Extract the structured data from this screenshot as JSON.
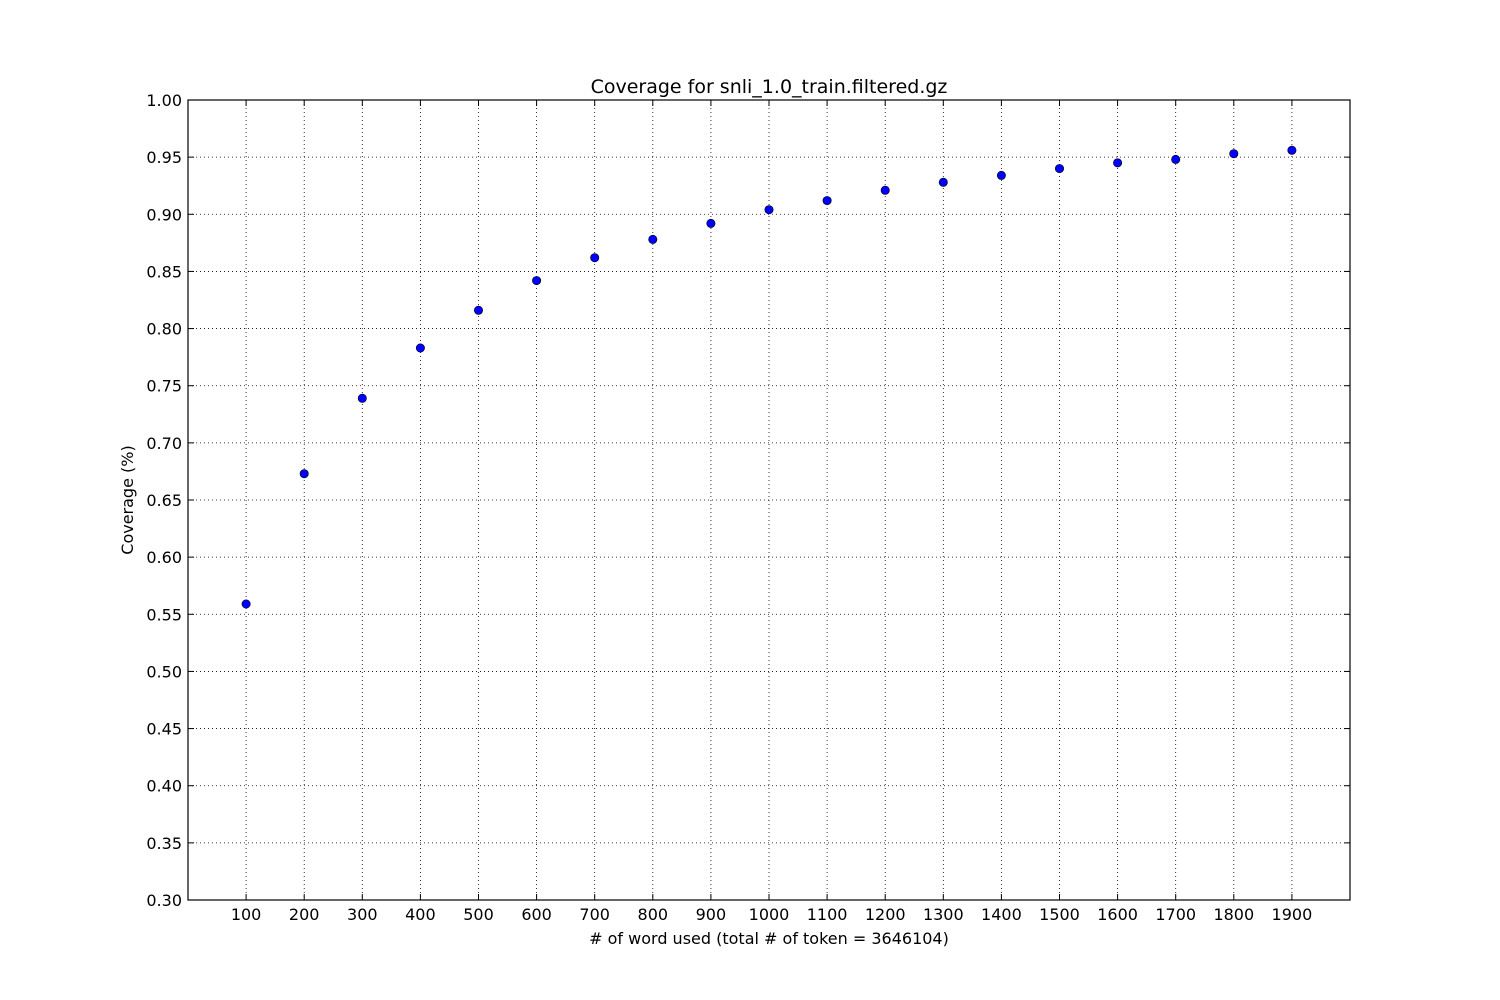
{
  "chart_data": {
    "type": "scatter",
    "title": "Coverage for snli_1.0_train.filtered.gz",
    "xlabel": "# of word used (total # of token = 3646104)",
    "ylabel": "Coverage (%)",
    "xlim": [
      0,
      2000
    ],
    "ylim": [
      0.3,
      1.0
    ],
    "x_ticks": [
      100,
      200,
      300,
      400,
      500,
      600,
      700,
      800,
      900,
      1000,
      1100,
      1200,
      1300,
      1400,
      1500,
      1600,
      1700,
      1800,
      1900
    ],
    "y_ticks": [
      0.3,
      0.35,
      0.4,
      0.45,
      0.5,
      0.55,
      0.6,
      0.65,
      0.7,
      0.75,
      0.8,
      0.85,
      0.9,
      0.95,
      1.0
    ],
    "y_tick_labels": [
      "0.30",
      "0.35",
      "0.40",
      "0.45",
      "0.50",
      "0.55",
      "0.60",
      "0.65",
      "0.70",
      "0.75",
      "0.80",
      "0.85",
      "0.90",
      "0.95",
      "1.00"
    ],
    "grid": true,
    "marker_color": "#0000ff",
    "x": [
      100,
      200,
      300,
      400,
      500,
      600,
      700,
      800,
      900,
      1000,
      1100,
      1200,
      1300,
      1400,
      1500,
      1600,
      1700,
      1800,
      1900
    ],
    "y": [
      0.559,
      0.673,
      0.739,
      0.783,
      0.816,
      0.842,
      0.862,
      0.878,
      0.892,
      0.904,
      0.912,
      0.921,
      0.928,
      0.934,
      0.94,
      0.945,
      0.948,
      0.953,
      0.956
    ]
  }
}
